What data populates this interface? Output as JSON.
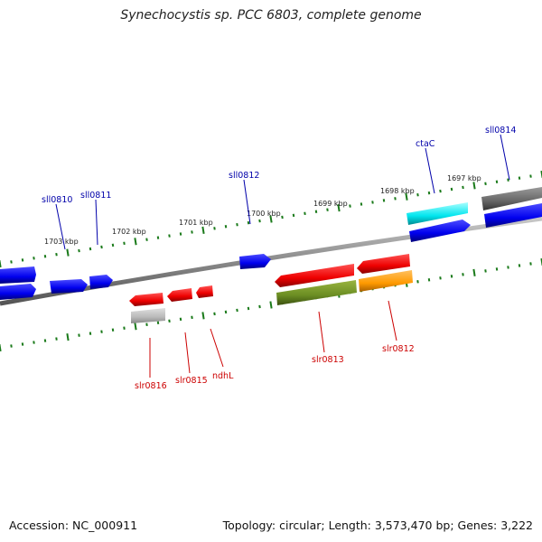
{
  "title": "Synechocystis sp. PCC 6803, complete genome",
  "footer": {
    "accession": "Accession: NC_000911",
    "summary": "Topology: circular; Length: 3,573,470 bp; Genes: 3,222"
  },
  "colors": {
    "backbone": "#8a8a8a",
    "tick": "#1a7a1a",
    "forward_label": "#0000aa",
    "reverse_label": "#cc0000"
  },
  "scale_labels": [
    "1703 kbp",
    "1702 kbp",
    "1701 kbp",
    "1700 kbp",
    "1699 kbp",
    "1698 kbp",
    "1697 kbp"
  ],
  "genes_forward": [
    {
      "label": "sll0810",
      "color": "#0000ee"
    },
    {
      "label": "sll0811",
      "color": "#0000ee"
    },
    {
      "label": "sll0812",
      "color": "#0000ee"
    },
    {
      "label": "ctaC",
      "color": "#00e5ee"
    },
    {
      "label": "sll0814",
      "color": "#0000ee"
    }
  ],
  "genes_reverse": [
    {
      "label": "slr0816",
      "color": "#ee0000"
    },
    {
      "label": "slr0815",
      "color": "#ee0000"
    },
    {
      "label": "ndhL",
      "color": "#ee0000"
    },
    {
      "label": "slr0813",
      "color": "#ee0000"
    },
    {
      "label": "slr0812",
      "color": "#ee0000"
    }
  ]
}
